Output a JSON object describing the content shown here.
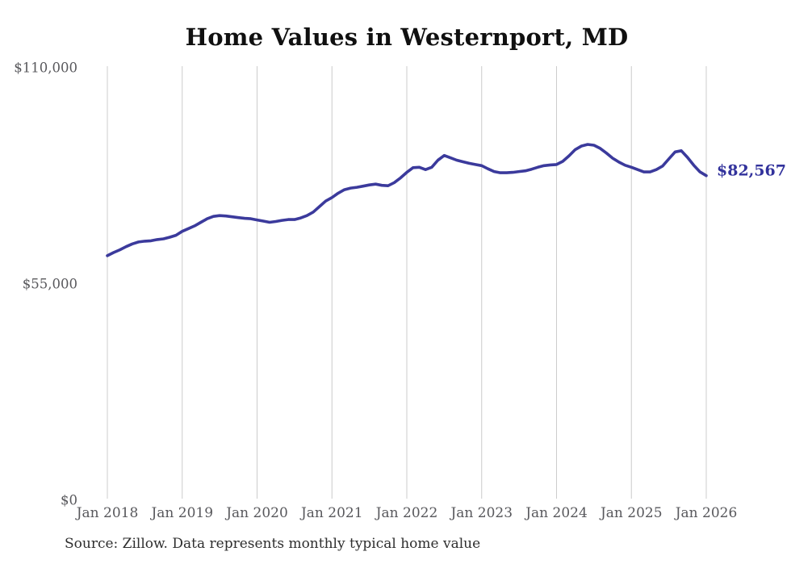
{
  "header": {
    "title": "Home Values in Westernport, MD"
  },
  "footer": {
    "source": "Source: Zillow. Data represents monthly typical home value"
  },
  "chart_data": {
    "type": "line",
    "title": "Home Values in Westernport, MD",
    "xlabel": "",
    "ylabel": "",
    "ylim": [
      0,
      110000
    ],
    "y_ticks": [
      0,
      55000,
      110000
    ],
    "y_tick_labels": [
      "$0",
      "$55,000",
      "$110,000"
    ],
    "x_tick_labels": [
      "Jan 2018",
      "Jan 2019",
      "Jan 2020",
      "Jan 2021",
      "Jan 2022",
      "Jan 2023",
      "Jan 2024",
      "Jan 2025",
      "Jan 2026"
    ],
    "x": [
      "2018-01",
      "2018-02",
      "2018-03",
      "2018-04",
      "2018-05",
      "2018-06",
      "2018-07",
      "2018-08",
      "2018-09",
      "2018-10",
      "2018-11",
      "2018-12",
      "2019-01",
      "2019-02",
      "2019-03",
      "2019-04",
      "2019-05",
      "2019-06",
      "2019-07",
      "2019-08",
      "2019-09",
      "2019-10",
      "2019-11",
      "2019-12",
      "2020-01",
      "2020-02",
      "2020-03",
      "2020-04",
      "2020-05",
      "2020-06",
      "2020-07",
      "2020-08",
      "2020-09",
      "2020-10",
      "2020-11",
      "2020-12",
      "2021-01",
      "2021-02",
      "2021-03",
      "2021-04",
      "2021-05",
      "2021-06",
      "2021-07",
      "2021-08",
      "2021-09",
      "2021-10",
      "2021-11",
      "2021-12",
      "2022-01",
      "2022-02",
      "2022-03",
      "2022-04",
      "2022-05",
      "2022-06",
      "2022-07",
      "2022-08",
      "2022-09",
      "2022-10",
      "2022-11",
      "2022-12",
      "2023-01",
      "2023-02",
      "2023-03",
      "2023-04",
      "2023-05",
      "2023-06",
      "2023-07",
      "2023-08",
      "2023-09",
      "2023-10",
      "2023-11",
      "2023-12",
      "2024-01",
      "2024-02",
      "2024-03",
      "2024-04",
      "2024-05",
      "2024-06",
      "2024-07",
      "2024-08",
      "2024-09",
      "2024-10",
      "2024-11",
      "2024-12",
      "2025-01",
      "2025-02",
      "2025-03",
      "2025-04",
      "2025-05",
      "2025-06",
      "2025-07",
      "2025-08",
      "2025-09",
      "2025-10",
      "2025-11",
      "2025-12",
      "2026-01"
    ],
    "series": [
      {
        "name": "Typical home value",
        "values": [
          62200,
          63000,
          63700,
          64500,
          65200,
          65700,
          65900,
          66000,
          66300,
          66500,
          66900,
          67400,
          68400,
          69100,
          69800,
          70700,
          71600,
          72200,
          72400,
          72300,
          72100,
          71900,
          71700,
          71600,
          71300,
          71000,
          70700,
          70900,
          71200,
          71400,
          71400,
          71800,
          72400,
          73300,
          74700,
          76100,
          77000,
          78100,
          79000,
          79400,
          79600,
          79900,
          80200,
          80400,
          80100,
          80000,
          80800,
          82000,
          83400,
          84600,
          84700,
          84100,
          84700,
          86500,
          87700,
          87100,
          86500,
          86100,
          85700,
          85400,
          85100,
          84300,
          83600,
          83300,
          83300,
          83400,
          83600,
          83800,
          84200,
          84700,
          85100,
          85300,
          85400,
          86200,
          87600,
          89200,
          90100,
          90500,
          90300,
          89500,
          88300,
          87000,
          86000,
          85200,
          84700,
          84100,
          83500,
          83500,
          84100,
          85000,
          86800,
          88600,
          88900,
          87200,
          85200,
          83500,
          82567
        ]
      }
    ],
    "end_label": "$82,567",
    "last_value": 82567,
    "grid": "vertical-only",
    "legend": "none",
    "line_color": "#3b3a9c",
    "value_label_color": "#32329c",
    "grid_color": "#cccccc",
    "tick_color": "#58585c",
    "background": "#ffffff"
  }
}
